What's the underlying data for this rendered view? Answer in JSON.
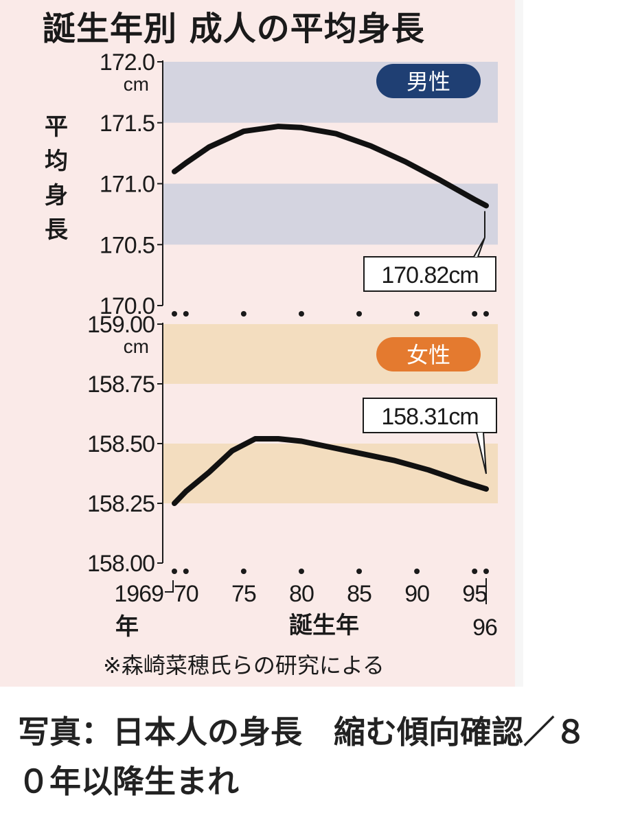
{
  "title": "誕生年別 成人の平均身長",
  "caption": "写真：日本人の身長　縮む傾向確認／８０年以降生まれ",
  "ylabel": "平均身長",
  "xlabel": "誕生年",
  "note": "※森崎菜穂氏らの研究による",
  "unit": "cm",
  "colors": {
    "panel_bg": "#faeae8",
    "male_band": "#d4d4e0",
    "female_band": "#f3ddbf",
    "male_badge": "#1f3f73",
    "female_badge": "#e47a2f",
    "line": "#111111"
  },
  "chart_data": [
    {
      "type": "line",
      "name": "男性",
      "badge": "男性",
      "ylim": [
        170.0,
        172.0
      ],
      "yticks": [
        "172.0",
        "171.5",
        "171.0",
        "170.5",
        "170.0"
      ],
      "bands": [
        [
          171.5,
          172.0
        ],
        [
          170.5,
          171.0
        ]
      ],
      "x": [
        1969,
        1970,
        1972,
        1975,
        1978,
        1980,
        1983,
        1986,
        1989,
        1992,
        1995,
        1996
      ],
      "y": [
        171.1,
        171.17,
        171.3,
        171.43,
        171.47,
        171.46,
        171.41,
        171.31,
        171.18,
        171.03,
        170.87,
        170.82
      ],
      "callout": "170.82cm"
    },
    {
      "type": "line",
      "name": "女性",
      "badge": "女性",
      "ylim": [
        158.0,
        159.0
      ],
      "yticks": [
        "159.00",
        "158.75",
        "158.50",
        "158.25",
        "158.00"
      ],
      "bands": [
        [
          158.75,
          159.0
        ],
        [
          158.25,
          158.5
        ]
      ],
      "x": [
        1969,
        1970,
        1972,
        1974,
        1976,
        1978,
        1980,
        1982,
        1985,
        1988,
        1991,
        1994,
        1996
      ],
      "y": [
        158.25,
        158.3,
        158.38,
        158.47,
        158.52,
        158.52,
        158.51,
        158.49,
        158.46,
        158.43,
        158.39,
        158.34,
        158.31
      ],
      "callout": "158.31cm"
    }
  ],
  "x_axis": {
    "ticks": [
      {
        "value": 1969,
        "label": "1969"
      },
      {
        "value": 1970,
        "label": "70"
      },
      {
        "value": 1975,
        "label": "75"
      },
      {
        "value": 1980,
        "label": "80"
      },
      {
        "value": 1985,
        "label": "85"
      },
      {
        "value": 1990,
        "label": "90"
      },
      {
        "value": 1995,
        "label": "95"
      },
      {
        "value": 1996,
        "label": "96"
      }
    ],
    "nen": "年"
  }
}
